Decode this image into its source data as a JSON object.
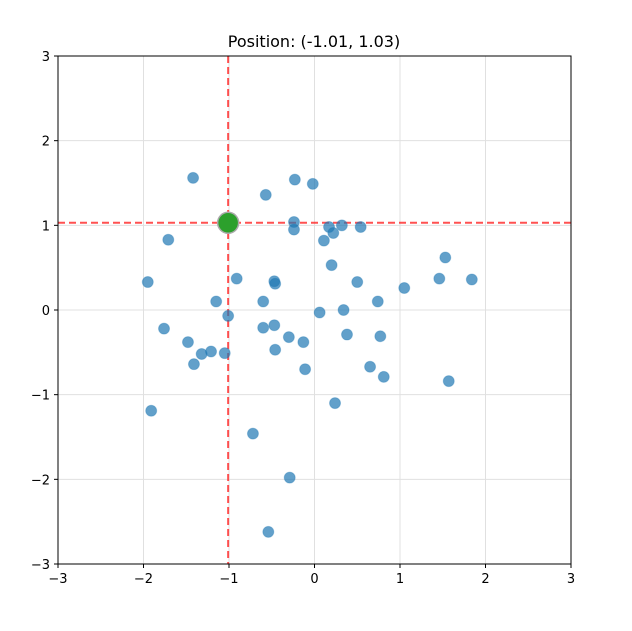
{
  "chart_data": {
    "type": "scatter",
    "title": "Position: (-1.01, 1.03)",
    "xlabel": "",
    "ylabel": "",
    "xlim": [
      -3,
      3
    ],
    "ylim": [
      -3,
      3
    ],
    "xticks": [
      -3,
      -2,
      -1,
      0,
      1,
      2,
      3
    ],
    "yticks": [
      -3,
      -2,
      -1,
      0,
      1,
      2,
      3
    ],
    "xtick_labels": [
      "−3",
      "−2",
      "−1",
      "0",
      "1",
      "2",
      "3"
    ],
    "ytick_labels": [
      "−3",
      "−2",
      "−1",
      "0",
      "1",
      "2",
      "3"
    ],
    "grid": true,
    "legend": null,
    "series": [
      {
        "name": "points",
        "color": "#1f77b4",
        "alpha": 0.7,
        "points": [
          [
            -1.42,
            1.56
          ],
          [
            -0.57,
            1.36
          ],
          [
            -0.23,
            1.54
          ],
          [
            -0.02,
            1.49
          ],
          [
            -1.71,
            0.83
          ],
          [
            -0.24,
            1.04
          ],
          [
            -0.24,
            0.95
          ],
          [
            0.17,
            0.98
          ],
          [
            0.22,
            0.91
          ],
          [
            0.32,
            1.0
          ],
          [
            0.54,
            0.98
          ],
          [
            0.11,
            0.82
          ],
          [
            0.2,
            0.53
          ],
          [
            -1.95,
            0.33
          ],
          [
            -0.91,
            0.37
          ],
          [
            -0.47,
            0.34
          ],
          [
            -0.46,
            0.31
          ],
          [
            -1.15,
            0.1
          ],
          [
            -0.6,
            0.1
          ],
          [
            0.5,
            0.33
          ],
          [
            0.74,
            0.1
          ],
          [
            1.05,
            0.26
          ],
          [
            1.53,
            0.62
          ],
          [
            1.46,
            0.37
          ],
          [
            1.84,
            0.36
          ],
          [
            -1.01,
            -0.07
          ],
          [
            0.06,
            -0.03
          ],
          [
            0.34,
            0.0
          ],
          [
            -1.76,
            -0.22
          ],
          [
            -0.6,
            -0.21
          ],
          [
            -0.47,
            -0.18
          ],
          [
            -0.3,
            -0.32
          ],
          [
            -0.13,
            -0.38
          ],
          [
            0.38,
            -0.29
          ],
          [
            0.77,
            -0.31
          ],
          [
            -1.48,
            -0.38
          ],
          [
            -1.32,
            -0.52
          ],
          [
            -1.21,
            -0.49
          ],
          [
            -1.05,
            -0.51
          ],
          [
            -0.46,
            -0.47
          ],
          [
            -1.41,
            -0.64
          ],
          [
            -0.11,
            -0.7
          ],
          [
            0.65,
            -0.67
          ],
          [
            0.81,
            -0.79
          ],
          [
            1.57,
            -0.84
          ],
          [
            -1.91,
            -1.19
          ],
          [
            0.24,
            -1.1
          ],
          [
            -0.72,
            -1.46
          ],
          [
            -0.29,
            -1.98
          ],
          [
            -0.54,
            -2.62
          ]
        ]
      }
    ],
    "marker": {
      "name": "current position",
      "x": -1.01,
      "y": 1.03,
      "color": "#2ca02c",
      "edge_color": "#aaaaaa"
    },
    "crosshair": {
      "x": -1.01,
      "y": 1.03,
      "color": "#ff3333",
      "style": "dashed"
    }
  },
  "colors": {
    "points": "#1f77b4",
    "marker": "#2ca02c",
    "crosshair": "#ff3333",
    "grid": "#e0e0e0",
    "axes": "#000000"
  }
}
